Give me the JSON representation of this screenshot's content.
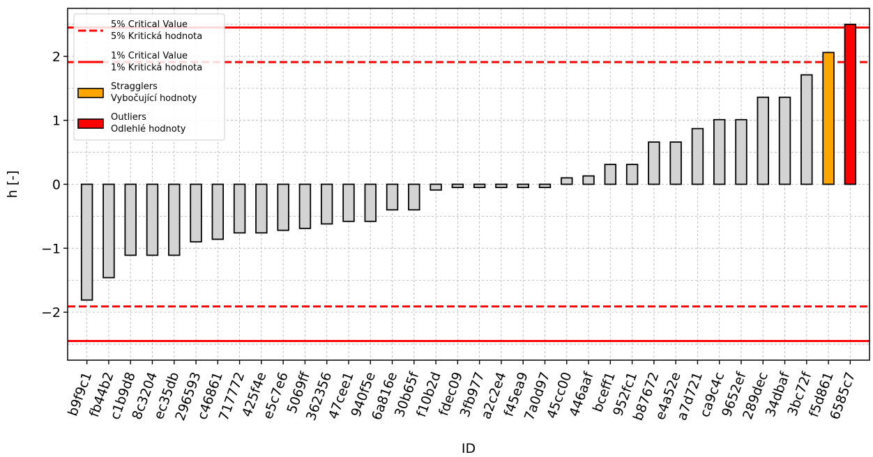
{
  "chart_data": {
    "type": "bar",
    "xlabel": "ID",
    "ylabel": "h [-]",
    "ylim": [
      -2.75,
      2.75
    ],
    "yticks": [
      -2,
      -1,
      0,
      1,
      2
    ],
    "ytick_labels": [
      "−2",
      "−1",
      "0",
      "1",
      "2"
    ],
    "grid": true,
    "legend_position": "top-left",
    "colors": {
      "normal": "#d3d3d3",
      "straggler": "#ffa500",
      "outlier": "#ff0000",
      "critical_line": "#ff0000",
      "bar_edge": "#000000"
    },
    "critical_values": {
      "five_percent": 1.91,
      "one_percent": 2.45
    },
    "categories": [
      "b9f9c1",
      "fb44b2",
      "c1b9d8",
      "8c3204",
      "ec35db",
      "296593",
      "c46861",
      "717772",
      "425f4e",
      "e5c7e6",
      "5069ff",
      "362356",
      "47cee1",
      "940f5e",
      "6a816e",
      "30b65f",
      "f10b2d",
      "fdec09",
      "3fb977",
      "a2c2e4",
      "f45ea9",
      "7a0d97",
      "45cc00",
      "446aaf",
      "bceff1",
      "952fc1",
      "b87672",
      "e4a52e",
      "a7d721",
      "ca9c4c",
      "9652ef",
      "289dec",
      "34dbaf",
      "3bc72f",
      "f5d861",
      "6585c7"
    ],
    "values": [
      -1.81,
      -1.46,
      -1.11,
      -1.11,
      -1.11,
      -0.9,
      -0.86,
      -0.76,
      -0.76,
      -0.72,
      -0.69,
      -0.62,
      -0.58,
      -0.58,
      -0.4,
      -0.4,
      -0.09,
      -0.05,
      -0.05,
      -0.05,
      -0.05,
      -0.05,
      0.1,
      0.13,
      0.31,
      0.31,
      0.66,
      0.66,
      0.87,
      1.01,
      1.01,
      1.36,
      1.36,
      1.71,
      2.06,
      2.5
    ],
    "bar_status": [
      "normal",
      "normal",
      "normal",
      "normal",
      "normal",
      "normal",
      "normal",
      "normal",
      "normal",
      "normal",
      "normal",
      "normal",
      "normal",
      "normal",
      "normal",
      "normal",
      "normal",
      "normal",
      "normal",
      "normal",
      "normal",
      "normal",
      "normal",
      "normal",
      "normal",
      "normal",
      "normal",
      "normal",
      "normal",
      "normal",
      "normal",
      "normal",
      "normal",
      "normal",
      "straggler",
      "outlier"
    ],
    "legend": [
      {
        "kind": "dashed-line",
        "line1": "5% Critical Value",
        "line2": "5% Kritická hodnota"
      },
      {
        "kind": "solid-line",
        "line1": "1% Critical Value",
        "line2": "1% Kritická hodnota"
      },
      {
        "kind": "orange-box",
        "line1": "Stragglers",
        "line2": "Vybočující hodnoty"
      },
      {
        "kind": "red-box",
        "line1": "Outliers",
        "line2": "Odlehlé hodnoty"
      }
    ]
  }
}
